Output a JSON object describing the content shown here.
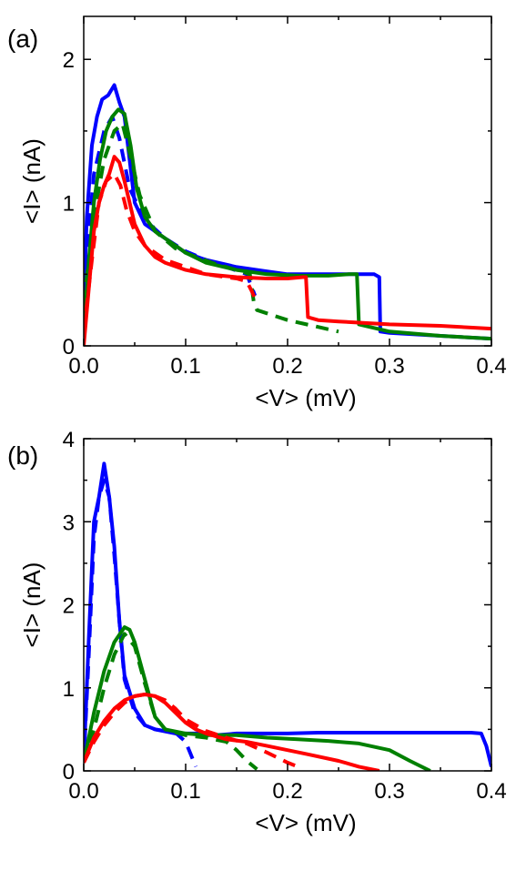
{
  "colors": {
    "blue": "#0000ff",
    "green": "#008000",
    "red": "#ff0000",
    "axis": "#000000"
  },
  "chart_data": [
    {
      "type": "line",
      "panel_label": "(a)",
      "xlabel": "<V> (mV)",
      "ylabel": "<I> (nA)",
      "xlim": [
        0,
        0.4
      ],
      "ylim": [
        0,
        2.3
      ],
      "x_ticks": [
        0.0,
        0.1,
        0.2,
        0.3,
        0.4
      ],
      "x_tick_labels": [
        "0.0",
        "0.1",
        "0.2",
        "0.3",
        "0.4"
      ],
      "y_ticks": [
        0,
        1,
        2
      ],
      "y_tick_labels": [
        "0",
        "1",
        "2"
      ],
      "grid": false,
      "series": [
        {
          "color": "blue",
          "style": "solid",
          "x": [
            0.0,
            0.003,
            0.008,
            0.013,
            0.018,
            0.024,
            0.03,
            0.035,
            0.04,
            0.045,
            0.05,
            0.06,
            0.07,
            0.08,
            0.1,
            0.12,
            0.15,
            0.18,
            0.2,
            0.22,
            0.25,
            0.27,
            0.285,
            0.29,
            0.291,
            0.3,
            0.35,
            0.4
          ],
          "y": [
            0.3,
            0.9,
            1.4,
            1.6,
            1.72,
            1.75,
            1.82,
            1.7,
            1.6,
            1.3,
            1.0,
            0.85,
            0.8,
            0.75,
            0.65,
            0.6,
            0.55,
            0.52,
            0.5,
            0.5,
            0.5,
            0.5,
            0.5,
            0.48,
            0.1,
            0.09,
            0.07,
            0.05
          ]
        },
        {
          "color": "blue",
          "style": "dashed",
          "x": [
            0.0,
            0.01,
            0.02,
            0.028,
            0.035,
            0.045,
            0.06,
            0.08,
            0.1,
            0.12,
            0.14,
            0.16,
            0.168
          ],
          "y": [
            0.4,
            1.2,
            1.5,
            1.6,
            1.45,
            1.1,
            0.88,
            0.75,
            0.66,
            0.6,
            0.55,
            0.5,
            0.35
          ]
        },
        {
          "color": "green",
          "style": "solid",
          "x": [
            0.0,
            0.005,
            0.01,
            0.016,
            0.022,
            0.028,
            0.034,
            0.04,
            0.046,
            0.052,
            0.06,
            0.07,
            0.08,
            0.1,
            0.12,
            0.15,
            0.18,
            0.21,
            0.24,
            0.26,
            0.268,
            0.27,
            0.3,
            0.35,
            0.4
          ],
          "y": [
            0.1,
            0.6,
            1.0,
            1.3,
            1.5,
            1.6,
            1.65,
            1.62,
            1.4,
            1.1,
            0.9,
            0.8,
            0.75,
            0.65,
            0.58,
            0.53,
            0.5,
            0.49,
            0.49,
            0.5,
            0.5,
            0.15,
            0.1,
            0.07,
            0.05
          ]
        },
        {
          "color": "green",
          "style": "dashed",
          "x": [
            0.0,
            0.01,
            0.02,
            0.03,
            0.038,
            0.045,
            0.055,
            0.07,
            0.09,
            0.11,
            0.13,
            0.15,
            0.163,
            0.167,
            0.17,
            0.2,
            0.25
          ],
          "y": [
            0.3,
            0.9,
            1.3,
            1.5,
            1.55,
            1.35,
            1.05,
            0.8,
            0.68,
            0.62,
            0.57,
            0.53,
            0.5,
            0.3,
            0.25,
            0.18,
            0.1
          ]
        },
        {
          "color": "red",
          "style": "solid",
          "x": [
            0.0,
            0.005,
            0.01,
            0.015,
            0.02,
            0.025,
            0.03,
            0.035,
            0.04,
            0.045,
            0.05,
            0.06,
            0.07,
            0.08,
            0.1,
            0.12,
            0.15,
            0.18,
            0.2,
            0.215,
            0.218,
            0.22,
            0.23,
            0.25,
            0.3,
            0.35,
            0.4
          ],
          "y": [
            0.0,
            0.4,
            0.8,
            1.0,
            1.12,
            1.2,
            1.32,
            1.28,
            1.15,
            1.0,
            0.85,
            0.7,
            0.62,
            0.58,
            0.53,
            0.5,
            0.48,
            0.47,
            0.47,
            0.48,
            0.48,
            0.2,
            0.18,
            0.17,
            0.15,
            0.14,
            0.12
          ]
        },
        {
          "color": "red",
          "style": "dashed",
          "x": [
            0.0,
            0.008,
            0.015,
            0.022,
            0.03,
            0.036,
            0.042,
            0.05,
            0.06,
            0.08,
            0.1,
            0.12,
            0.14,
            0.15,
            0.16,
            0.165,
            0.17
          ],
          "y": [
            0.1,
            0.6,
            1.0,
            1.15,
            1.2,
            1.12,
            0.95,
            0.8,
            0.7,
            0.6,
            0.55,
            0.5,
            0.48,
            0.47,
            0.45,
            0.38,
            0.3
          ]
        }
      ]
    },
    {
      "type": "line",
      "panel_label": "(b)",
      "xlabel": "<V> (mV)",
      "ylabel": "<I> (nA)",
      "xlim": [
        0,
        0.4
      ],
      "ylim": [
        0,
        4
      ],
      "x_ticks": [
        0.0,
        0.1,
        0.2,
        0.3,
        0.4
      ],
      "x_tick_labels": [
        "0.0",
        "0.1",
        "0.2",
        "0.3",
        "0.4"
      ],
      "y_ticks": [
        0,
        1,
        2,
        3,
        4
      ],
      "y_tick_labels": [
        "0",
        "1",
        "2",
        "3",
        "4"
      ],
      "grid": false,
      "series": [
        {
          "color": "blue",
          "style": "solid",
          "x": [
            0.0,
            0.005,
            0.01,
            0.015,
            0.02,
            0.025,
            0.03,
            0.035,
            0.04,
            0.05,
            0.06,
            0.07,
            0.09,
            0.11,
            0.13,
            0.15,
            0.17,
            0.2,
            0.23,
            0.26,
            0.29,
            0.32,
            0.35,
            0.38,
            0.39,
            0.395,
            0.4
          ],
          "y": [
            0.1,
            1.6,
            3.0,
            3.3,
            3.7,
            3.3,
            2.7,
            1.8,
            1.15,
            0.75,
            0.55,
            0.5,
            0.45,
            0.45,
            0.43,
            0.45,
            0.45,
            0.45,
            0.46,
            0.46,
            0.46,
            0.46,
            0.46,
            0.46,
            0.45,
            0.3,
            0.05
          ]
        },
        {
          "color": "blue",
          "style": "dashed",
          "x": [
            0.0,
            0.005,
            0.01,
            0.015,
            0.02,
            0.025,
            0.03,
            0.035,
            0.04,
            0.05,
            0.06,
            0.07,
            0.08,
            0.09,
            0.1,
            0.105,
            0.11
          ],
          "y": [
            0.1,
            1.4,
            2.8,
            3.3,
            3.5,
            3.3,
            2.6,
            1.8,
            1.1,
            0.7,
            0.55,
            0.5,
            0.48,
            0.46,
            0.35,
            0.2,
            0.05
          ]
        },
        {
          "color": "green",
          "style": "solid",
          "x": [
            0.0,
            0.01,
            0.02,
            0.03,
            0.04,
            0.045,
            0.05,
            0.06,
            0.07,
            0.08,
            0.1,
            0.12,
            0.15,
            0.18,
            0.21,
            0.24,
            0.27,
            0.3,
            0.32,
            0.335,
            0.34
          ],
          "y": [
            0.1,
            0.7,
            1.2,
            1.55,
            1.73,
            1.7,
            1.55,
            1.1,
            0.65,
            0.5,
            0.45,
            0.43,
            0.43,
            0.4,
            0.38,
            0.36,
            0.33,
            0.25,
            0.12,
            0.03,
            0.0
          ]
        },
        {
          "color": "green",
          "style": "dashed",
          "x": [
            0.0,
            0.01,
            0.02,
            0.03,
            0.04,
            0.05,
            0.06,
            0.07,
            0.08,
            0.1,
            0.12,
            0.14,
            0.15,
            0.16,
            0.17
          ],
          "y": [
            0.1,
            0.5,
            1.0,
            1.4,
            1.65,
            1.5,
            1.05,
            0.65,
            0.5,
            0.43,
            0.4,
            0.35,
            0.25,
            0.12,
            0.02
          ]
        },
        {
          "color": "red",
          "style": "solid",
          "x": [
            0.0,
            0.01,
            0.02,
            0.03,
            0.04,
            0.05,
            0.06,
            0.07,
            0.08,
            0.09,
            0.1,
            0.11,
            0.12,
            0.14,
            0.16,
            0.18,
            0.2,
            0.22,
            0.25,
            0.27,
            0.29
          ],
          "y": [
            0.1,
            0.4,
            0.6,
            0.75,
            0.85,
            0.9,
            0.92,
            0.9,
            0.82,
            0.7,
            0.58,
            0.5,
            0.45,
            0.38,
            0.35,
            0.3,
            0.25,
            0.2,
            0.12,
            0.05,
            0.0
          ]
        },
        {
          "color": "red",
          "style": "dashed",
          "x": [
            0.0,
            0.01,
            0.02,
            0.03,
            0.04,
            0.05,
            0.06,
            0.07,
            0.08,
            0.09,
            0.1,
            0.12,
            0.14,
            0.16,
            0.18,
            0.2,
            0.21
          ],
          "y": [
            0.1,
            0.35,
            0.55,
            0.7,
            0.82,
            0.9,
            0.92,
            0.9,
            0.85,
            0.75,
            0.62,
            0.48,
            0.4,
            0.33,
            0.22,
            0.1,
            0.05
          ]
        }
      ]
    }
  ]
}
